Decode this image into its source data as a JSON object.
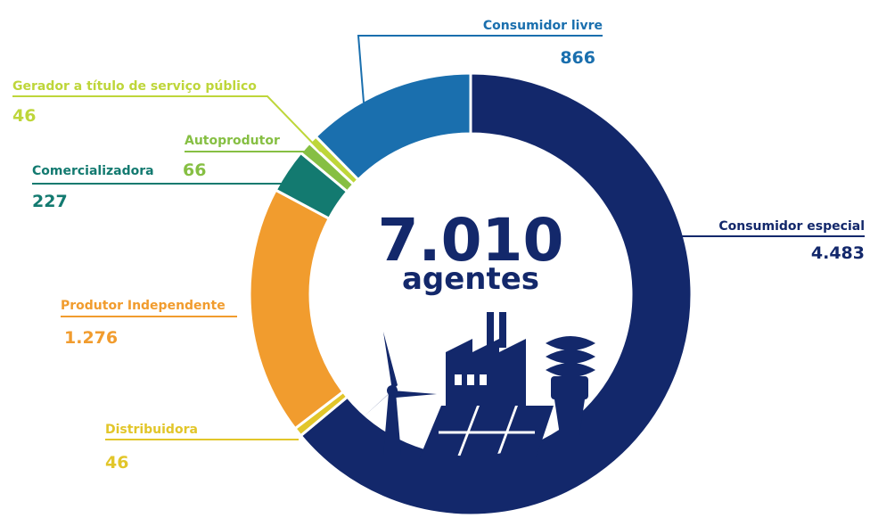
{
  "chart_data": {
    "type": "pie",
    "subtype": "donut",
    "center_value": "7.010",
    "center_label": "agentes",
    "categories": [
      "Consumidor especial",
      "Distribuidora",
      "Produtor Independente",
      "Comercializadora",
      "Autoprodutor",
      "Gerador a título de serviço público",
      "Consumidor livre"
    ],
    "values": [
      4483,
      46,
      1276,
      227,
      66,
      46,
      866
    ],
    "value_labels": [
      "4.483",
      "46",
      "1.276",
      "227",
      "66",
      "46",
      "866"
    ],
    "colors": [
      "#13286b",
      "#e2c62a",
      "#f19c2e",
      "#137a70",
      "#86bf43",
      "#bed63a",
      "#1a6fae"
    ],
    "label_colors": [
      "#13286b",
      "#e2c62a",
      "#f19c2e",
      "#137a70",
      "#86bf43",
      "#bed63a",
      "#1a6fae"
    ],
    "start_angle_degrees": 0,
    "direction": "clockwise",
    "legend": "none",
    "icons": [
      "wind-turbine-icon",
      "factory-icon",
      "solar-panel-icon",
      "light-bulb-icon"
    ]
  }
}
